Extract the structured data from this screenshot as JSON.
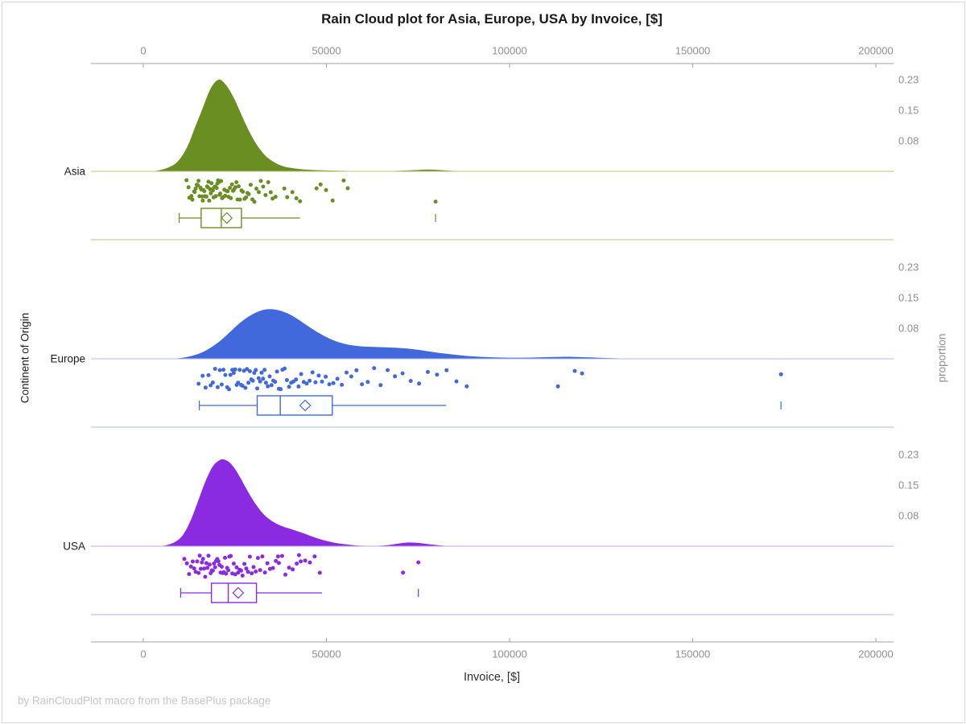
{
  "title": "Rain Cloud plot for Asia, Europe, USA by Invoice, [$]",
  "footer": "by RainCloudPlot macro from the BasePlus package",
  "x_axis": {
    "label": "Invoice, [$]",
    "ticks": [
      {
        "value": 0,
        "label": "0"
      },
      {
        "value": 50000,
        "label": "50000"
      },
      {
        "value": 100000,
        "label": "100000"
      },
      {
        "value": 150000,
        "label": "150000"
      },
      {
        "value": 200000,
        "label": "200000"
      }
    ]
  },
  "y_axis_left": {
    "label": "Continent of Origin"
  },
  "y_axis_right": {
    "label": "proportion"
  },
  "chart_data": {
    "type": "raincloud",
    "xlabel": "Invoice, [$]",
    "ylabel_left": "Continent of Origin",
    "ylabel_right": "proportion",
    "x_range": [
      0,
      200000
    ],
    "grid": false,
    "proportion_ticks": [
      {
        "label": "0.23",
        "proportion": 0.225
      },
      {
        "label": "0.15",
        "proportion": 0.15
      },
      {
        "label": "0.08",
        "proportion": 0.075
      }
    ],
    "groups": [
      {
        "name": "Asia",
        "color": "#6B8E23",
        "line_color": "#b5c981",
        "density": [
          [
            1500,
            0
          ],
          [
            4000,
            0.002
          ],
          [
            7000,
            0.01
          ],
          [
            9500,
            0.025
          ],
          [
            12000,
            0.06
          ],
          [
            14000,
            0.105
          ],
          [
            16000,
            0.15
          ],
          [
            18000,
            0.196
          ],
          [
            19500,
            0.218
          ],
          [
            20800,
            0.225
          ],
          [
            22000,
            0.218
          ],
          [
            23500,
            0.2
          ],
          [
            25000,
            0.175
          ],
          [
            26500,
            0.145
          ],
          [
            28000,
            0.115
          ],
          [
            29500,
            0.088
          ],
          [
            31000,
            0.065
          ],
          [
            32500,
            0.047
          ],
          [
            34000,
            0.033
          ],
          [
            36000,
            0.021
          ],
          [
            38000,
            0.013
          ],
          [
            40500,
            0.008
          ],
          [
            43500,
            0.005
          ],
          [
            47000,
            0.003
          ],
          [
            51000,
            0.002
          ],
          [
            56000,
            0.001
          ],
          [
            61000,
            0.0006
          ],
          [
            66000,
            0.0008
          ],
          [
            70000,
            0.0015
          ],
          [
            74000,
            0.003
          ],
          [
            77500,
            0.0045
          ],
          [
            80500,
            0.0035
          ],
          [
            84000,
            0.0015
          ],
          [
            88000,
            0
          ]
        ],
        "points": [
          11800,
          12350,
          12600,
          13150,
          13400,
          13900,
          14050,
          14300,
          14620,
          14900,
          15080,
          15340,
          15610,
          15830,
          16020,
          16240,
          16410,
          16650,
          16820,
          17040,
          17230,
          17410,
          17640,
          17790,
          18010,
          18240,
          18430,
          18610,
          18840,
          19020,
          19210,
          19440,
          19630,
          19810,
          20050,
          20230,
          20410,
          20660,
          20830,
          21010,
          21260,
          21520,
          21790,
          22130,
          22380,
          22740,
          23050,
          23290,
          23640,
          23880,
          24230,
          24510,
          24790,
          25140,
          25420,
          25730,
          26040,
          26380,
          26820,
          27190,
          27650,
          28060,
          28440,
          28790,
          29320,
          29770,
          30340,
          30880,
          31540,
          32080,
          32730,
          33380,
          34120,
          34790,
          35300,
          36100,
          38500,
          39300,
          40700,
          41800,
          42800,
          47300,
          48400,
          49900,
          51700,
          54700,
          55800,
          79800
        ],
        "box": {
          "whisker_low": 9800,
          "q1": 15800,
          "median": 21300,
          "q3": 26800,
          "whisker_high": 42800,
          "mean": 22800,
          "outliers": [
            79800
          ]
        }
      },
      {
        "name": "Europe",
        "color": "#4269DC",
        "line_color": "#aebbe8",
        "density": [
          [
            8000,
            0
          ],
          [
            11000,
            0.003
          ],
          [
            14000,
            0.009
          ],
          [
            17000,
            0.02
          ],
          [
            20000,
            0.037
          ],
          [
            23000,
            0.06
          ],
          [
            26000,
            0.085
          ],
          [
            29000,
            0.105
          ],
          [
            32000,
            0.118
          ],
          [
            34500,
            0.122
          ],
          [
            37000,
            0.119
          ],
          [
            39500,
            0.111
          ],
          [
            42000,
            0.098
          ],
          [
            45000,
            0.08
          ],
          [
            48000,
            0.063
          ],
          [
            51000,
            0.049
          ],
          [
            54000,
            0.039
          ],
          [
            57000,
            0.033
          ],
          [
            60000,
            0.03
          ],
          [
            63000,
            0.029
          ],
          [
            66000,
            0.028
          ],
          [
            69000,
            0.027
          ],
          [
            72000,
            0.025
          ],
          [
            75000,
            0.022
          ],
          [
            78000,
            0.018
          ],
          [
            81000,
            0.014
          ],
          [
            84000,
            0.011
          ],
          [
            87000,
            0.008
          ],
          [
            90000,
            0.006
          ],
          [
            94000,
            0.004
          ],
          [
            98000,
            0.003
          ],
          [
            102000,
            0.0028
          ],
          [
            106000,
            0.003
          ],
          [
            110000,
            0.004
          ],
          [
            114000,
            0.0048
          ],
          [
            118000,
            0.0045
          ],
          [
            122000,
            0.0035
          ],
          [
            126000,
            0.002
          ],
          [
            130000,
            0.001
          ],
          [
            134000,
            0
          ]
        ],
        "points": [
          15100,
          16200,
          17000,
          17800,
          18400,
          19000,
          19600,
          20300,
          20900,
          21400,
          21900,
          22400,
          22900,
          23400,
          23800,
          24300,
          24700,
          25100,
          25500,
          25900,
          26300,
          26700,
          27100,
          27500,
          27900,
          28300,
          28700,
          29100,
          29500,
          29900,
          30300,
          30700,
          31100,
          31500,
          31900,
          32300,
          32700,
          33100,
          33500,
          34000,
          34500,
          35000,
          35500,
          36000,
          36500,
          37000,
          37500,
          38000,
          38600,
          39200,
          39800,
          40400,
          41000,
          41700,
          42400,
          43100,
          43800,
          44600,
          45400,
          46200,
          47000,
          47900,
          48800,
          49800,
          50800,
          51900,
          53000,
          54200,
          55500,
          56800,
          58200,
          59700,
          61300,
          63000,
          64800,
          66700,
          68700,
          70800,
          73000,
          75300,
          77700,
          80200,
          82800,
          85500,
          88300,
          113200,
          117800,
          119800,
          174100
        ],
        "box": {
          "whisker_low": 15300,
          "q1": 31100,
          "median": 37400,
          "q3": 51600,
          "whisker_high": 82700,
          "mean": 44200,
          "outliers": [
            174100
          ]
        }
      },
      {
        "name": "USA",
        "color": "#8A2BE2",
        "line_color": "#cba4ec",
        "density": [
          [
            4000,
            0
          ],
          [
            6500,
            0.003
          ],
          [
            9000,
            0.012
          ],
          [
            11000,
            0.03
          ],
          [
            13000,
            0.065
          ],
          [
            15000,
            0.112
          ],
          [
            17000,
            0.16
          ],
          [
            19000,
            0.196
          ],
          [
            20800,
            0.211
          ],
          [
            22000,
            0.213
          ],
          [
            23500,
            0.206
          ],
          [
            25000,
            0.19
          ],
          [
            26500,
            0.168
          ],
          [
            28000,
            0.143
          ],
          [
            29500,
            0.12
          ],
          [
            31000,
            0.099
          ],
          [
            32500,
            0.082
          ],
          [
            34000,
            0.069
          ],
          [
            36000,
            0.057
          ],
          [
            38000,
            0.049
          ],
          [
            40000,
            0.043
          ],
          [
            42000,
            0.037
          ],
          [
            44000,
            0.031
          ],
          [
            46000,
            0.024
          ],
          [
            48000,
            0.018
          ],
          [
            50000,
            0.013
          ],
          [
            52500,
            0.008
          ],
          [
            55000,
            0.005
          ],
          [
            58000,
            0.002
          ],
          [
            61000,
            0.001
          ],
          [
            64000,
            0.001
          ],
          [
            67000,
            0.003
          ],
          [
            70000,
            0.007
          ],
          [
            72500,
            0.009
          ],
          [
            75000,
            0.008
          ],
          [
            78000,
            0.005
          ],
          [
            81000,
            0.002
          ],
          [
            84000,
            0
          ]
        ],
        "points": [
          11200,
          11900,
          12500,
          13000,
          13500,
          13900,
          14300,
          14700,
          15100,
          15400,
          15700,
          16000,
          16300,
          16600,
          16900,
          17200,
          17500,
          17800,
          18100,
          18400,
          18700,
          19000,
          19300,
          19600,
          19900,
          20200,
          20500,
          20800,
          21100,
          21400,
          21700,
          22000,
          22300,
          22600,
          22900,
          23200,
          23500,
          23900,
          24300,
          24700,
          25100,
          25500,
          25900,
          26300,
          26700,
          27100,
          27600,
          28100,
          28600,
          29100,
          29600,
          30100,
          30700,
          31300,
          31900,
          32500,
          33200,
          33900,
          34600,
          35400,
          36200,
          36800,
          37000,
          37900,
          38800,
          39800,
          40800,
          41900,
          42500,
          43000,
          44200,
          45500,
          46800,
          48200,
          70900,
          75100
        ],
        "box": {
          "whisker_low": 10200,
          "q1": 18600,
          "median": 23200,
          "q3": 30900,
          "whisker_high": 48800,
          "mean": 25900,
          "outliers": [
            75100
          ]
        }
      }
    ]
  }
}
